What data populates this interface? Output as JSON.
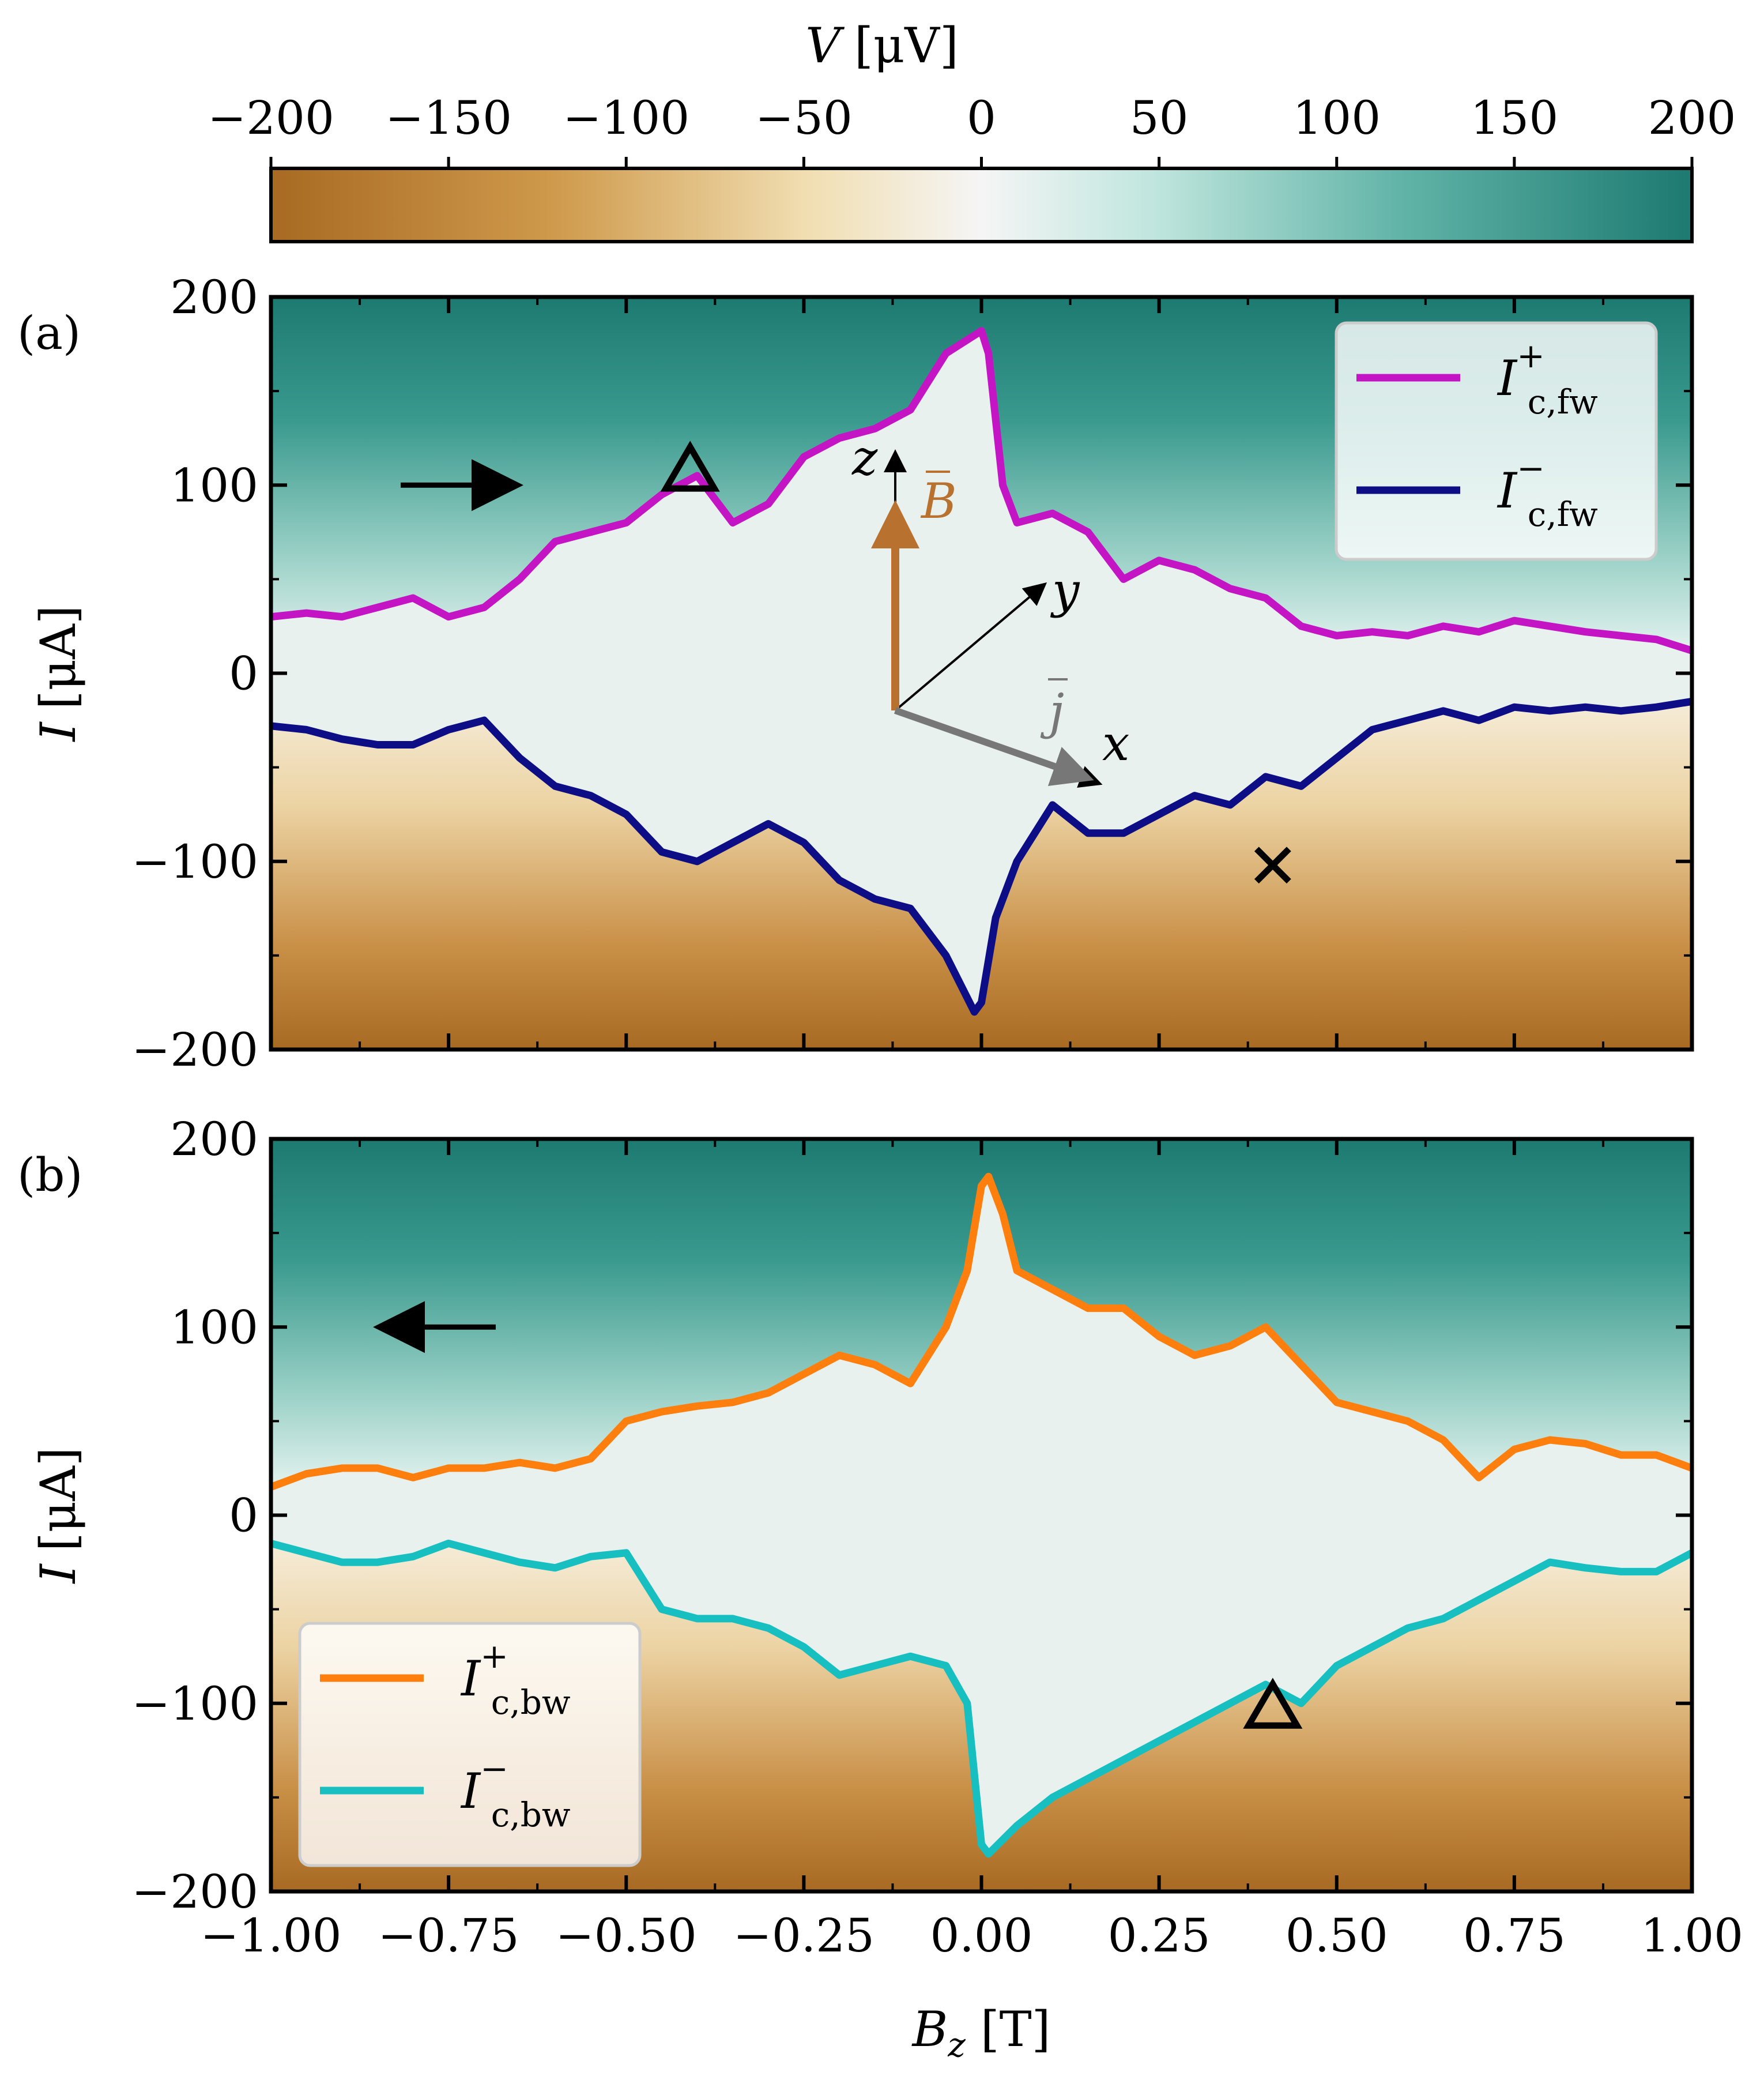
{
  "colors": {
    "neg": "#a86a22",
    "mid": "#e9f1ef",
    "pos": "#1d7a71",
    "ic_plus_fw": "#c415c4",
    "ic_minus_fw": "#0d0d86",
    "ic_plus_bw": "#ff7f0e",
    "ic_minus_bw": "#17bfc0",
    "B_arrow": "#b8712f",
    "j_arrow": "#777777"
  },
  "colorbar": {
    "label": "V",
    "unit": "[μV]",
    "ticks": [
      "−200",
      "−150",
      "−100",
      "−50",
      "0",
      "50",
      "100",
      "150",
      "200"
    ],
    "range": [
      -200,
      200
    ],
    "colormap": "BrBG"
  },
  "chart_data": [
    {
      "type": "heatmap",
      "panel_label": "(a)",
      "xlabel": "",
      "ylabel": "I",
      "ylabel_unit": "[μA]",
      "xlim": [
        -1.0,
        1.0
      ],
      "ylim": [
        -200,
        200
      ],
      "yticks": [
        "200",
        "100",
        "0",
        "−100",
        "−200"
      ],
      "sweep_direction": "forward",
      "arrow": "right",
      "legend_position": "top-right",
      "series": [
        {
          "name": "I",
          "sub": "c,fw",
          "sup": "+",
          "color": "#c415c4",
          "x": [
            -1.0,
            -0.95,
            -0.9,
            -0.85,
            -0.8,
            -0.75,
            -0.7,
            -0.65,
            -0.6,
            -0.55,
            -0.5,
            -0.45,
            -0.4,
            -0.35,
            -0.3,
            -0.25,
            -0.2,
            -0.15,
            -0.1,
            -0.05,
            0.0,
            0.01,
            0.03,
            0.05,
            0.1,
            0.15,
            0.2,
            0.25,
            0.3,
            0.35,
            0.4,
            0.45,
            0.5,
            0.55,
            0.6,
            0.65,
            0.7,
            0.75,
            0.8,
            0.85,
            0.9,
            0.95,
            1.0
          ],
          "y": [
            30,
            32,
            30,
            35,
            40,
            30,
            35,
            50,
            70,
            75,
            80,
            95,
            105,
            80,
            90,
            115,
            125,
            130,
            140,
            170,
            182,
            170,
            100,
            80,
            85,
            75,
            50,
            60,
            55,
            45,
            40,
            25,
            20,
            22,
            20,
            25,
            22,
            28,
            25,
            22,
            20,
            18,
            12
          ]
        },
        {
          "name": "I",
          "sub": "c,fw",
          "sup": "−",
          "color": "#0d0d86",
          "x": [
            -1.0,
            -0.95,
            -0.9,
            -0.85,
            -0.8,
            -0.75,
            -0.7,
            -0.65,
            -0.6,
            -0.55,
            -0.5,
            -0.45,
            -0.4,
            -0.35,
            -0.3,
            -0.25,
            -0.2,
            -0.15,
            -0.1,
            -0.05,
            -0.01,
            0.0,
            0.02,
            0.05,
            0.1,
            0.15,
            0.2,
            0.25,
            0.3,
            0.35,
            0.4,
            0.45,
            0.5,
            0.55,
            0.6,
            0.65,
            0.7,
            0.75,
            0.8,
            0.85,
            0.9,
            0.95,
            1.0
          ],
          "y": [
            -28,
            -30,
            -35,
            -38,
            -38,
            -30,
            -25,
            -45,
            -60,
            -65,
            -75,
            -95,
            -100,
            -90,
            -80,
            -90,
            -110,
            -120,
            -125,
            -150,
            -180,
            -175,
            -130,
            -100,
            -70,
            -85,
            -85,
            -75,
            -65,
            -70,
            -55,
            -60,
            -45,
            -30,
            -25,
            -20,
            -25,
            -18,
            -20,
            -18,
            -20,
            -18,
            -15
          ]
        }
      ],
      "markers": [
        {
          "symbol": "triangle",
          "x": -0.41,
          "y": 108
        },
        {
          "symbol": "cross",
          "x": 0.41,
          "y": -102
        }
      ],
      "inset_axes": {
        "labels": [
          "z",
          "y",
          "x"
        ],
        "vectors": [
          "B",
          "j"
        ]
      }
    },
    {
      "type": "heatmap",
      "panel_label": "(b)",
      "xlabel": "B",
      "xlabel_sub": "z",
      "xlabel_unit": "[T]",
      "ylabel": "I",
      "ylabel_unit": "[μA]",
      "xlim": [
        -1.0,
        1.0
      ],
      "ylim": [
        -200,
        200
      ],
      "xticks": [
        "−1.00",
        "−0.75",
        "−0.50",
        "−0.25",
        "0.00",
        "0.25",
        "0.50",
        "0.75",
        "1.00"
      ],
      "yticks": [
        "200",
        "100",
        "0",
        "−100",
        "−200"
      ],
      "sweep_direction": "backward",
      "arrow": "left",
      "legend_position": "bottom-left",
      "series": [
        {
          "name": "I",
          "sub": "c,bw",
          "sup": "+",
          "color": "#ff7f0e",
          "x": [
            -1.0,
            -0.95,
            -0.9,
            -0.85,
            -0.8,
            -0.75,
            -0.7,
            -0.65,
            -0.6,
            -0.55,
            -0.5,
            -0.45,
            -0.4,
            -0.35,
            -0.3,
            -0.25,
            -0.2,
            -0.15,
            -0.1,
            -0.05,
            -0.02,
            0.0,
            0.01,
            0.03,
            0.05,
            0.1,
            0.15,
            0.2,
            0.25,
            0.3,
            0.35,
            0.4,
            0.45,
            0.5,
            0.55,
            0.6,
            0.65,
            0.7,
            0.75,
            0.8,
            0.85,
            0.9,
            0.95,
            1.0
          ],
          "y": [
            15,
            22,
            25,
            25,
            20,
            25,
            25,
            28,
            25,
            30,
            50,
            55,
            58,
            60,
            65,
            75,
            85,
            80,
            70,
            100,
            130,
            175,
            180,
            160,
            130,
            120,
            110,
            110,
            95,
            85,
            90,
            100,
            80,
            60,
            55,
            50,
            40,
            20,
            35,
            40,
            38,
            32,
            32,
            25
          ]
        },
        {
          "name": "I",
          "sub": "c,bw",
          "sup": "−",
          "color": "#17bfc0",
          "x": [
            -1.0,
            -0.95,
            -0.9,
            -0.85,
            -0.8,
            -0.75,
            -0.7,
            -0.65,
            -0.6,
            -0.55,
            -0.5,
            -0.45,
            -0.4,
            -0.35,
            -0.3,
            -0.25,
            -0.2,
            -0.15,
            -0.1,
            -0.05,
            -0.02,
            0.0,
            0.01,
            0.05,
            0.1,
            0.15,
            0.2,
            0.25,
            0.3,
            0.35,
            0.4,
            0.45,
            0.5,
            0.55,
            0.6,
            0.65,
            0.7,
            0.75,
            0.8,
            0.85,
            0.9,
            0.95,
            1.0
          ],
          "y": [
            -15,
            -20,
            -25,
            -25,
            -22,
            -15,
            -20,
            -25,
            -28,
            -22,
            -20,
            -50,
            -55,
            -55,
            -60,
            -70,
            -85,
            -80,
            -75,
            -80,
            -100,
            -175,
            -180,
            -165,
            -150,
            -140,
            -130,
            -120,
            -110,
            -100,
            -90,
            -100,
            -80,
            -70,
            -60,
            -55,
            -45,
            -35,
            -25,
            -28,
            -30,
            -30,
            -20
          ]
        }
      ],
      "markers": [
        {
          "symbol": "triangle",
          "x": 0.41,
          "y": -102
        }
      ]
    }
  ]
}
